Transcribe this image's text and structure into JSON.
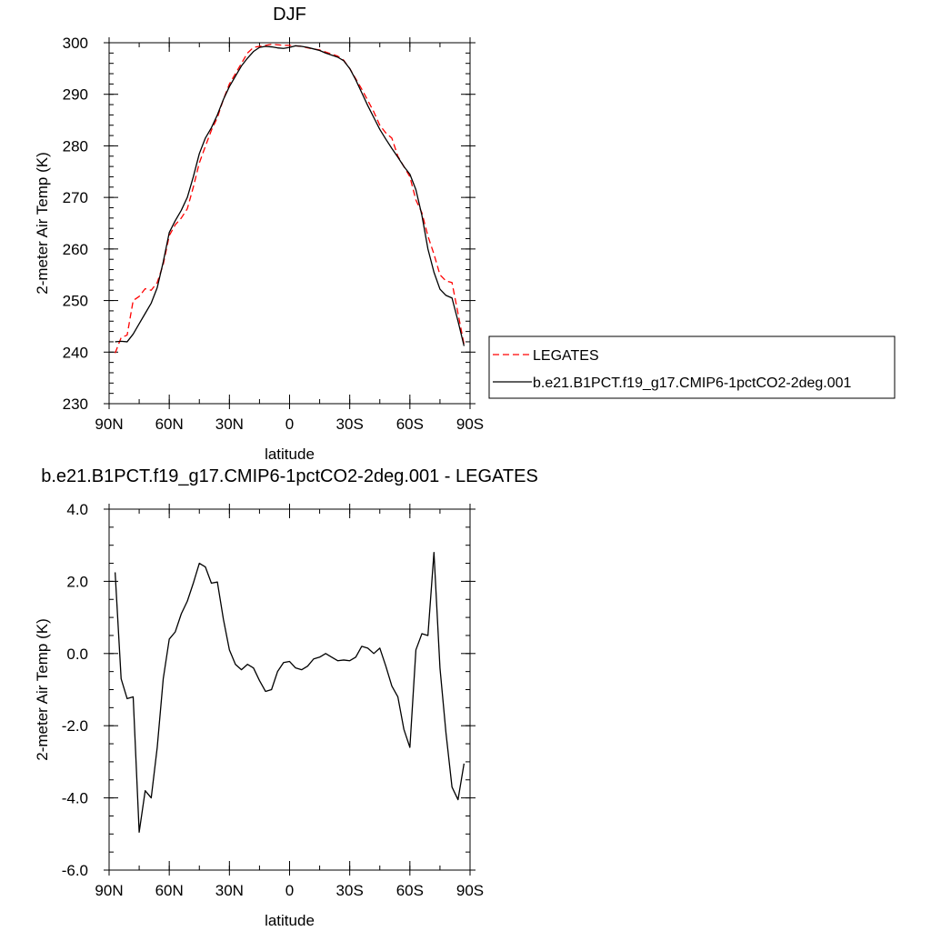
{
  "chart_data": [
    {
      "type": "line",
      "title": "DJF",
      "xlabel": "latitude",
      "ylabel": "2-meter Air Temp (K)",
      "xlim": [
        -90,
        90
      ],
      "ylim": [
        230,
        300
      ],
      "x_ticks": [
        {
          "value": -90,
          "label": "90N"
        },
        {
          "value": -60,
          "label": "60N"
        },
        {
          "value": -30,
          "label": "30N"
        },
        {
          "value": 0,
          "label": "0"
        },
        {
          "value": 30,
          "label": "30S"
        },
        {
          "value": 60,
          "label": "60S"
        },
        {
          "value": 90,
          "label": "90S"
        }
      ],
      "y_ticks": [
        "230",
        "240",
        "250",
        "260",
        "270",
        "280",
        "290",
        "300"
      ],
      "legend_position": "outside-right",
      "series": [
        {
          "name": "LEGATES",
          "color": "#ff0000",
          "dash": "dashed",
          "x": [
            -87,
            -84,
            -81,
            -78,
            -75,
            -72,
            -69,
            -66,
            -63,
            -60,
            -57,
            -54,
            -51,
            -48,
            -45,
            -42,
            -39,
            -36,
            -33,
            -30,
            -27,
            -24,
            -21,
            -18,
            -15,
            -12,
            -9,
            -6,
            -3,
            0,
            3,
            6,
            9,
            12,
            15,
            18,
            21,
            24,
            27,
            30,
            33,
            36,
            39,
            42,
            45,
            48,
            51,
            54,
            57,
            60,
            63,
            66,
            69,
            72,
            75,
            78,
            81,
            84,
            87
          ],
          "y": [
            239.8,
            242.8,
            243.3,
            250.0,
            250.8,
            252.3,
            252.0,
            253.5,
            257.0,
            262.6,
            264.7,
            266.0,
            267.8,
            272.0,
            276.7,
            279.9,
            283.0,
            285.5,
            289.0,
            292.0,
            294.0,
            296.0,
            298.0,
            299.1,
            299.3,
            299.5,
            299.7,
            299.6,
            299.5,
            299.5,
            299.4,
            299.3,
            299.0,
            298.8,
            298.6,
            298.2,
            297.8,
            297.4,
            296.6,
            295.0,
            293.0,
            291.0,
            288.8,
            286.6,
            284.0,
            282.5,
            281.5,
            278.0,
            276.0,
            274.0,
            269.5,
            267.0,
            262.5,
            259.0,
            255.0,
            253.8,
            253.5,
            247.5,
            241.5
          ]
        },
        {
          "name": "b.e21.B1PCT.f19_g17.CMIP6-1pctCO2-2deg.001",
          "color": "#000000",
          "dash": "solid",
          "x": [
            -87,
            -84,
            -81,
            -78,
            -75,
            -72,
            -69,
            -66,
            -63,
            -60,
            -57,
            -54,
            -51,
            -48,
            -45,
            -42,
            -39,
            -36,
            -33,
            -30,
            -27,
            -24,
            -21,
            -18,
            -15,
            -12,
            -9,
            -6,
            -3,
            0,
            3,
            6,
            9,
            12,
            15,
            18,
            21,
            24,
            27,
            30,
            33,
            36,
            39,
            42,
            45,
            48,
            51,
            54,
            57,
            60,
            63,
            66,
            69,
            72,
            75,
            78,
            81,
            84,
            87
          ],
          "y": [
            242.0,
            242.1,
            242.0,
            243.5,
            245.5,
            247.5,
            249.5,
            252.5,
            257.5,
            263.2,
            265.5,
            267.5,
            270.0,
            274.0,
            278.5,
            281.5,
            283.5,
            286.0,
            289.0,
            291.5,
            293.5,
            295.5,
            297.0,
            298.3,
            299.1,
            299.3,
            299.2,
            299.0,
            298.9,
            299.1,
            299.4,
            299.3,
            299.1,
            298.8,
            298.5,
            298.0,
            297.6,
            297.2,
            296.5,
            295.0,
            292.8,
            290.3,
            287.8,
            285.5,
            283.2,
            281.3,
            279.5,
            277.8,
            276.0,
            274.5,
            271.5,
            266.5,
            260.0,
            255.5,
            252.2,
            251.0,
            250.5,
            246.0,
            241.2
          ]
        }
      ]
    },
    {
      "type": "line",
      "title": "b.e21.B1PCT.f19_g17.CMIP6-1pctCO2-2deg.001 - LEGATES",
      "xlabel": "latitude",
      "ylabel": "2-meter Air Temp (K)",
      "xlim": [
        -90,
        90
      ],
      "ylim": [
        -6,
        4
      ],
      "x_ticks": [
        {
          "value": -90,
          "label": "90N"
        },
        {
          "value": -60,
          "label": "60N"
        },
        {
          "value": -30,
          "label": "30N"
        },
        {
          "value": 0,
          "label": "0"
        },
        {
          "value": 30,
          "label": "30S"
        },
        {
          "value": 60,
          "label": "60S"
        },
        {
          "value": 90,
          "label": "90S"
        }
      ],
      "y_ticks": [
        "-6.0",
        "-4.0",
        "-2.0",
        "0.0",
        "2.0",
        "4.0"
      ],
      "series": [
        {
          "color": "#000000",
          "dash": "solid",
          "x": [
            -87,
            -84,
            -81,
            -78,
            -75,
            -72,
            -69,
            -66,
            -63,
            -60,
            -57,
            -54,
            -51,
            -48,
            -45,
            -42,
            -39,
            -36,
            -33,
            -30,
            -27,
            -24,
            -21,
            -18,
            -15,
            -12,
            -9,
            -6,
            -3,
            0,
            3,
            6,
            9,
            12,
            15,
            18,
            21,
            24,
            27,
            30,
            33,
            36,
            39,
            42,
            45,
            48,
            51,
            54,
            57,
            60,
            63,
            66,
            69,
            72,
            75,
            78,
            81,
            84,
            87
          ],
          "y": [
            2.25,
            -0.7,
            -1.25,
            -1.2,
            -4.95,
            -3.8,
            -4.0,
            -2.6,
            -0.7,
            0.4,
            0.6,
            1.1,
            1.45,
            1.95,
            2.5,
            2.4,
            1.95,
            1.98,
            0.95,
            0.1,
            -0.3,
            -0.45,
            -0.3,
            -0.4,
            -0.75,
            -1.05,
            -1.0,
            -0.5,
            -0.25,
            -0.22,
            -0.4,
            -0.45,
            -0.35,
            -0.15,
            -0.1,
            0.0,
            -0.1,
            -0.2,
            -0.18,
            -0.2,
            -0.1,
            0.2,
            0.15,
            0.0,
            0.15,
            -0.35,
            -0.9,
            -1.2,
            -2.1,
            -2.6,
            0.1,
            0.55,
            0.5,
            2.8,
            -0.4,
            -2.2,
            -3.7,
            -4.05,
            -3.05
          ]
        }
      ]
    }
  ]
}
